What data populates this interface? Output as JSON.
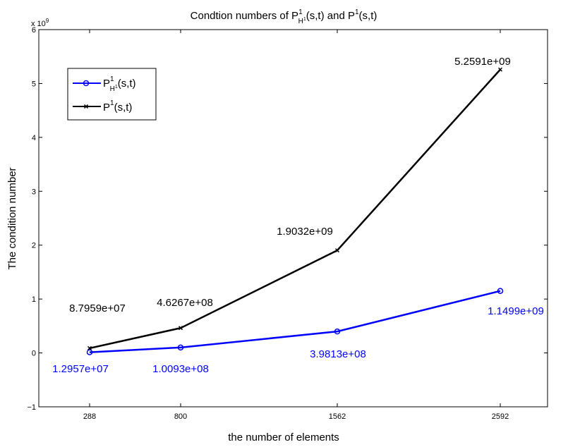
{
  "chart_data": {
    "type": "line",
    "title": {
      "prefix": "Condtion numbers of P",
      "sup1": "1",
      "sub1": "H",
      "sub1_sup": "1",
      "middle": "(s,t) and P",
      "sup2": "1",
      "suffix": "(s,t)"
    },
    "xlabel": "the number of elements",
    "ylabel": "The condition number",
    "y_multiplier": {
      "base": "x 10",
      "exponent": "9"
    },
    "categories": [
      "288",
      "800",
      "1562",
      "2592"
    ],
    "ylim": [
      -1,
      6
    ],
    "yticks": [
      -1,
      0,
      1,
      2,
      3,
      4,
      5,
      6
    ],
    "ytick_labels": [
      "−1",
      "0",
      "1",
      "2",
      "3",
      "4",
      "5",
      "6"
    ],
    "grid": false,
    "legend_position": "top-left",
    "series": [
      {
        "name_parts": {
          "base": "P",
          "sup": "1",
          "sub": "H",
          "sub_sup": "1",
          "tail": "(s,t)"
        },
        "color": "#0000ff",
        "marker": "circle",
        "values": [
          0.012957,
          0.10093,
          0.39813,
          1.1499
        ],
        "labels": [
          "1.2957e+07",
          "1.0093e+08",
          "3.9813e+08",
          "1.1499e+09"
        ]
      },
      {
        "name_parts": {
          "base": "P",
          "sup": "1",
          "tail": "(s,t)"
        },
        "color": "#000000",
        "marker": "x",
        "values": [
          0.087959,
          0.46267,
          1.9032,
          5.2591
        ],
        "labels": [
          "8.7959e+07",
          "4.6267e+08",
          "1.9032e+09",
          "5.2591e+09"
        ]
      }
    ]
  }
}
